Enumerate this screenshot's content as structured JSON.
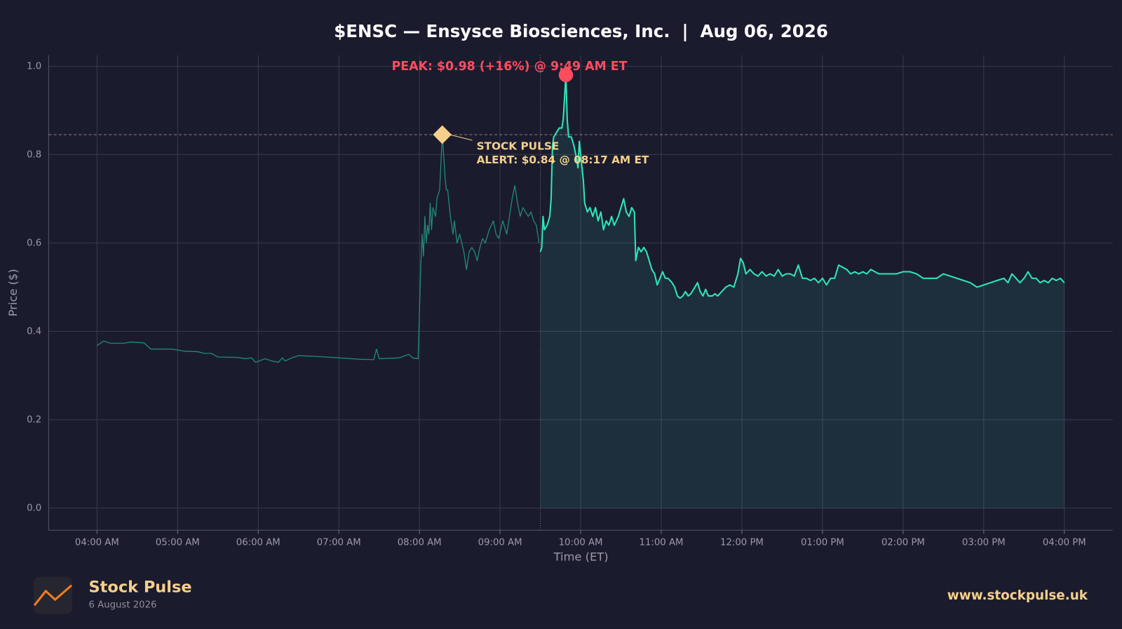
{
  "chart_data": {
    "type": "line",
    "title": "$ENSC — Ensysce Biosciences, Inc.  |  Aug 06, 2026",
    "x_label": "Time (ET)",
    "y_label": "Price ($)",
    "xlim": [
      "03:24 AM",
      "04:36 PM"
    ],
    "xticks": [
      "04:00 AM",
      "05:00 AM",
      "06:00 AM",
      "07:00 AM",
      "08:00 AM",
      "09:00 AM",
      "10:00 AM",
      "11:00 AM",
      "12:00 PM",
      "01:00 PM",
      "02:00 PM",
      "03:00 PM",
      "04:00 PM"
    ],
    "ylim": [
      -0.05,
      1.025
    ],
    "yticks": [
      {
        "value": 0,
        "label": "0.0"
      },
      0.2,
      0.4,
      0.6,
      0.8,
      {
        "value": 1,
        "label": "1.0"
      }
    ],
    "grid": true,
    "series": [
      {
        "color": "#1f8a74",
        "fill": false,
        "x": [
          "04:00 AM",
          "04:05 AM",
          "04:10 AM",
          "04:20 AM",
          "04:25 AM",
          "04:35 AM",
          "04:40 AM",
          "04:55 AM",
          "05:00 AM",
          "05:05 AM",
          "05:15 AM",
          "05:20 AM",
          "05:25 AM",
          "05:30 AM",
          "05:45 AM",
          "05:50 AM",
          "05:55 AM",
          "05:58 AM",
          "06:00 AM",
          "06:05 AM",
          "06:10 AM",
          "06:15 AM",
          "06:18 AM",
          "06:20 AM",
          "06:25 AM",
          "06:30 AM",
          "06:45 AM",
          "07:00 AM",
          "07:15 AM",
          "07:26 AM",
          "07:28 AM",
          "07:30 AM",
          "07:45 AM",
          "07:52 AM",
          "07:55 AM",
          "07:59 AM",
          "08:01 AM",
          "08:02 AM",
          "08:03 AM",
          "08:04 AM",
          "08:05 AM",
          "08:06 AM",
          "08:07 AM",
          "08:08 AM",
          "08:09 AM",
          "08:10 AM",
          "08:12 AM",
          "08:13 AM",
          "08:15 AM",
          "08:16 AM",
          "08:17 AM",
          "08:18 AM",
          "08:19 AM",
          "08:20 AM",
          "08:21 AM",
          "08:23 AM",
          "08:25 AM",
          "08:26 AM",
          "08:28 AM",
          "08:30 AM",
          "08:33 AM",
          "08:35 AM",
          "08:37 AM",
          "08:39 AM",
          "08:41 AM",
          "08:43 AM",
          "08:45 AM",
          "08:47 AM",
          "08:49 AM",
          "08:52 AM",
          "08:55 AM",
          "08:57 AM",
          "08:59 AM",
          "09:02 AM",
          "09:05 AM",
          "09:07 AM",
          "09:09 AM",
          "09:11 AM",
          "09:13 AM",
          "09:15 AM",
          "09:17 AM",
          "09:19 AM",
          "09:21 AM",
          "09:23 AM",
          "09:25 AM",
          "09:27 AM",
          "09:29 AM"
        ],
        "values": [
          0.368,
          0.378,
          0.373,
          0.373,
          0.376,
          0.374,
          0.36,
          0.36,
          0.358,
          0.355,
          0.354,
          0.35,
          0.35,
          0.342,
          0.341,
          0.338,
          0.34,
          0.33,
          0.332,
          0.338,
          0.333,
          0.33,
          0.34,
          0.333,
          0.34,
          0.345,
          0.343,
          0.34,
          0.337,
          0.336,
          0.36,
          0.338,
          0.34,
          0.348,
          0.34,
          0.338,
          0.55,
          0.62,
          0.57,
          0.66,
          0.6,
          0.64,
          0.62,
          0.69,
          0.63,
          0.68,
          0.66,
          0.7,
          0.72,
          0.78,
          0.845,
          0.8,
          0.75,
          0.72,
          0.72,
          0.66,
          0.62,
          0.65,
          0.6,
          0.62,
          0.58,
          0.54,
          0.58,
          0.59,
          0.58,
          0.56,
          0.59,
          0.61,
          0.6,
          0.63,
          0.65,
          0.62,
          0.61,
          0.65,
          0.62,
          0.66,
          0.7,
          0.73,
          0.69,
          0.66,
          0.68,
          0.67,
          0.66,
          0.67,
          0.65,
          0.64,
          0.6
        ]
      },
      {
        "color": "#2ee6b8",
        "fill": true,
        "x": [
          "09:30 AM",
          "09:31 AM",
          "09:32 AM",
          "09:33 AM",
          "09:35 AM",
          "09:37 AM",
          "09:38 AM",
          "09:39 AM",
          "09:40 AM",
          "09:42 AM",
          "09:44 AM",
          "09:46 AM",
          "09:47 AM",
          "09:48 AM",
          "09:49 AM",
          "09:50 AM",
          "09:51 AM",
          "09:53 AM",
          "09:55 AM",
          "09:57 AM",
          "09:58 AM",
          "09:59 AM",
          "10:00 AM",
          "10:02 AM",
          "10:03 AM",
          "10:05 AM",
          "10:07 AM",
          "10:09 AM",
          "10:11 AM",
          "10:13 AM",
          "10:15 AM",
          "10:17 AM",
          "10:19 AM",
          "10:21 AM",
          "10:23 AM",
          "10:25 AM",
          "10:28 AM",
          "10:30 AM",
          "10:32 AM",
          "10:34 AM",
          "10:36 AM",
          "10:38 AM",
          "10:40 AM",
          "10:41 AM",
          "10:43 AM",
          "10:45 AM",
          "10:47 AM",
          "10:49 AM",
          "10:51 AM",
          "10:53 AM",
          "10:55 AM",
          "10:57 AM",
          "10:59 AM",
          "11:01 AM",
          "11:03 AM",
          "11:05 AM",
          "11:08 AM",
          "11:10 AM",
          "11:12 AM",
          "11:14 AM",
          "11:16 AM",
          "11:18 AM",
          "11:20 AM",
          "11:22 AM",
          "11:25 AM",
          "11:27 AM",
          "11:29 AM",
          "11:31 AM",
          "11:33 AM",
          "11:35 AM",
          "11:38 AM",
          "11:40 AM",
          "11:42 AM",
          "11:45 AM",
          "11:48 AM",
          "11:51 AM",
          "11:54 AM",
          "11:57 AM",
          "11:59 AM",
          "12:01 PM",
          "12:03 PM",
          "12:06 PM",
          "12:09 PM",
          "12:12 PM",
          "12:15 PM",
          "12:18 PM",
          "12:21 PM",
          "12:24 PM",
          "12:27 PM",
          "12:30 PM",
          "12:33 PM",
          "12:36 PM",
          "12:39 PM",
          "12:42 PM",
          "12:45 PM",
          "12:48 PM",
          "12:51 PM",
          "12:54 PM",
          "12:57 PM",
          "01:00 PM",
          "01:03 PM",
          "01:06 PM",
          "01:09 PM",
          "01:12 PM",
          "01:15 PM",
          "01:18 PM",
          "01:21 PM",
          "01:24 PM",
          "01:27 PM",
          "01:30 PM",
          "01:33 PM",
          "01:36 PM",
          "01:39 PM",
          "01:42 PM",
          "01:45 PM",
          "01:50 PM",
          "01:55 PM",
          "02:00 PM",
          "02:05 PM",
          "02:10 PM",
          "02:15 PM",
          "02:20 PM",
          "02:25 PM",
          "02:30 PM",
          "02:35 PM",
          "02:40 PM",
          "02:45 PM",
          "02:50 PM",
          "02:55 PM",
          "03:00 PM",
          "03:05 PM",
          "03:10 PM",
          "03:15 PM",
          "03:18 PM",
          "03:21 PM",
          "03:24 PM",
          "03:27 PM",
          "03:30 PM",
          "03:33 PM",
          "03:36 PM",
          "03:39 PM",
          "03:42 PM",
          "03:45 PM",
          "03:48 PM",
          "03:51 PM",
          "03:54 PM",
          "03:57 PM",
          "04:00 PM"
        ],
        "values": [
          0.58,
          0.59,
          0.66,
          0.63,
          0.64,
          0.66,
          0.7,
          0.82,
          0.84,
          0.85,
          0.86,
          0.86,
          0.88,
          0.93,
          0.98,
          0.88,
          0.84,
          0.84,
          0.82,
          0.79,
          0.77,
          0.83,
          0.8,
          0.74,
          0.69,
          0.67,
          0.68,
          0.66,
          0.68,
          0.65,
          0.67,
          0.63,
          0.65,
          0.64,
          0.66,
          0.64,
          0.66,
          0.68,
          0.7,
          0.67,
          0.66,
          0.68,
          0.67,
          0.56,
          0.59,
          0.58,
          0.59,
          0.58,
          0.56,
          0.54,
          0.53,
          0.505,
          0.52,
          0.535,
          0.52,
          0.52,
          0.51,
          0.5,
          0.48,
          0.475,
          0.48,
          0.49,
          0.48,
          0.485,
          0.5,
          0.51,
          0.49,
          0.48,
          0.495,
          0.48,
          0.48,
          0.485,
          0.48,
          0.49,
          0.5,
          0.505,
          0.5,
          0.53,
          0.565,
          0.555,
          0.53,
          0.54,
          0.53,
          0.525,
          0.535,
          0.525,
          0.53,
          0.525,
          0.54,
          0.525,
          0.53,
          0.53,
          0.525,
          0.55,
          0.52,
          0.52,
          0.515,
          0.52,
          0.51,
          0.52,
          0.505,
          0.52,
          0.52,
          0.55,
          0.545,
          0.54,
          0.53,
          0.535,
          0.53,
          0.535,
          0.53,
          0.54,
          0.535,
          0.53,
          0.53,
          0.53,
          0.53,
          0.535,
          0.535,
          0.53,
          0.52,
          0.52,
          0.52,
          0.53,
          0.525,
          0.52,
          0.515,
          0.51,
          0.5,
          0.505,
          0.51,
          0.515,
          0.52,
          0.51,
          0.53,
          0.52,
          0.51,
          0.52,
          0.535,
          0.52,
          0.52,
          0.51,
          0.515,
          0.51,
          0.52,
          0.515,
          0.52,
          0.51
        ]
      }
    ],
    "peak": {
      "x": "09:49 AM",
      "y": 0.98,
      "color": "#ff4d5e",
      "label": "PEAK: $0.98 (+16%) @ 9:49 AM ET"
    },
    "alert": {
      "x": "08:17 AM",
      "y": 0.845,
      "color": "#f5d08a",
      "label": [
        "STOCK PULSE",
        "ALERT: $0.84 @ 08:17 AM ET"
      ]
    }
  },
  "footer": {
    "brand": "Stock Pulse",
    "date": "6 August 2026",
    "url": "www.stockpulse.uk"
  }
}
